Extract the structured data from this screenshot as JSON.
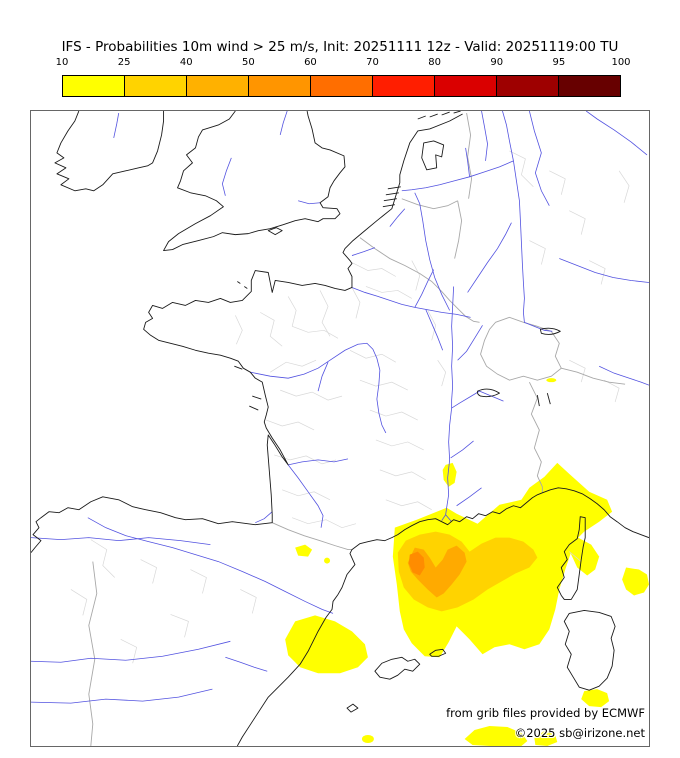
{
  "title": "IFS - Probabilities 10m wind > 25 m/s, Init: 20251111 12z - Valid: 20251119:00 TU",
  "colorbar": {
    "tick_labels": [
      "10",
      "25",
      "40",
      "50",
      "60",
      "70",
      "80",
      "90",
      "95",
      "100"
    ],
    "segment_colors": [
      "#ffff00",
      "#ffd300",
      "#ffb100",
      "#ff9500",
      "#ff6e00",
      "#ff1e00",
      "#da0000",
      "#9e0000",
      "#670000"
    ]
  },
  "map": {
    "attribution_line1": "from grib files provided by ECMWF",
    "attribution_line2": "©2025 sb@irizone.net",
    "probability_fill_colors": {
      "p10": "#ffff00",
      "p25": "#ffd300",
      "p40": "#ffaa00",
      "p50": "#ff8c00"
    },
    "line_colors": {
      "coastline": "#1a1a1a",
      "river": "#5252e0",
      "border": "#a8a8a8",
      "department": "#d8d8d8"
    }
  }
}
